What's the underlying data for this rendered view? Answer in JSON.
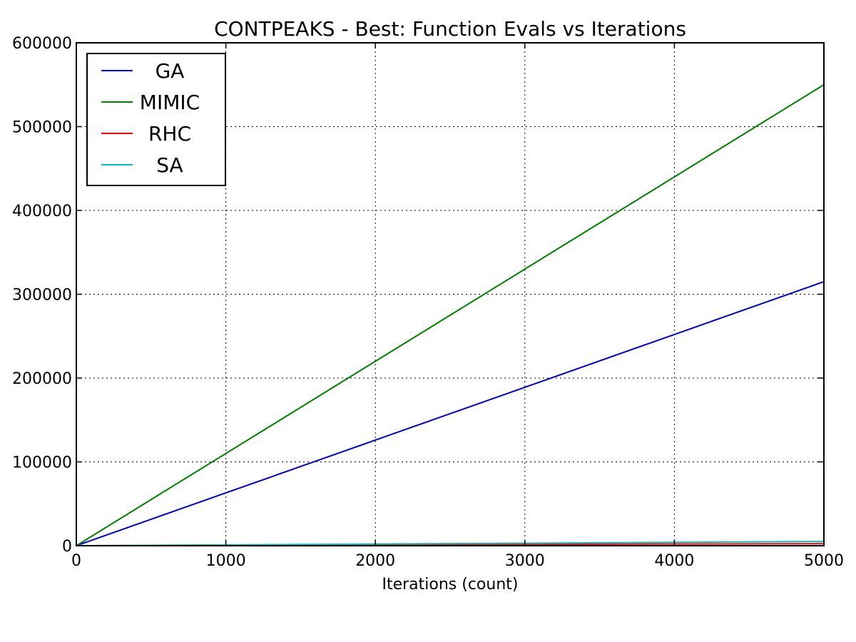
{
  "chart_data": {
    "type": "line",
    "title": "CONTPEAKS - Best: Function Evals vs Iterations",
    "xlabel": "Iterations (count)",
    "ylabel": "",
    "xlim": [
      0,
      5000
    ],
    "ylim": [
      0,
      600000
    ],
    "xticks": [
      0,
      1000,
      2000,
      3000,
      4000,
      5000
    ],
    "yticks": [
      0,
      100000,
      200000,
      300000,
      400000,
      500000,
      600000
    ],
    "grid": true,
    "legend_position": "top-left",
    "x": [
      0,
      1000,
      2000,
      3000,
      4000,
      5000
    ],
    "series": [
      {
        "name": "GA",
        "color": "#0000cc",
        "values": [
          0,
          63000,
          126000,
          189000,
          252000,
          315000
        ]
      },
      {
        "name": "MIMIC",
        "color": "#007f00",
        "values": [
          0,
          110000,
          220000,
          330000,
          440000,
          550000
        ]
      },
      {
        "name": "RHC",
        "color": "#ff0000",
        "values": [
          0,
          500,
          1000,
          1500,
          2000,
          2500
        ]
      },
      {
        "name": "SA",
        "color": "#00bfbf",
        "values": [
          0,
          1000,
          2000,
          3000,
          4000,
          5000
        ]
      }
    ]
  }
}
